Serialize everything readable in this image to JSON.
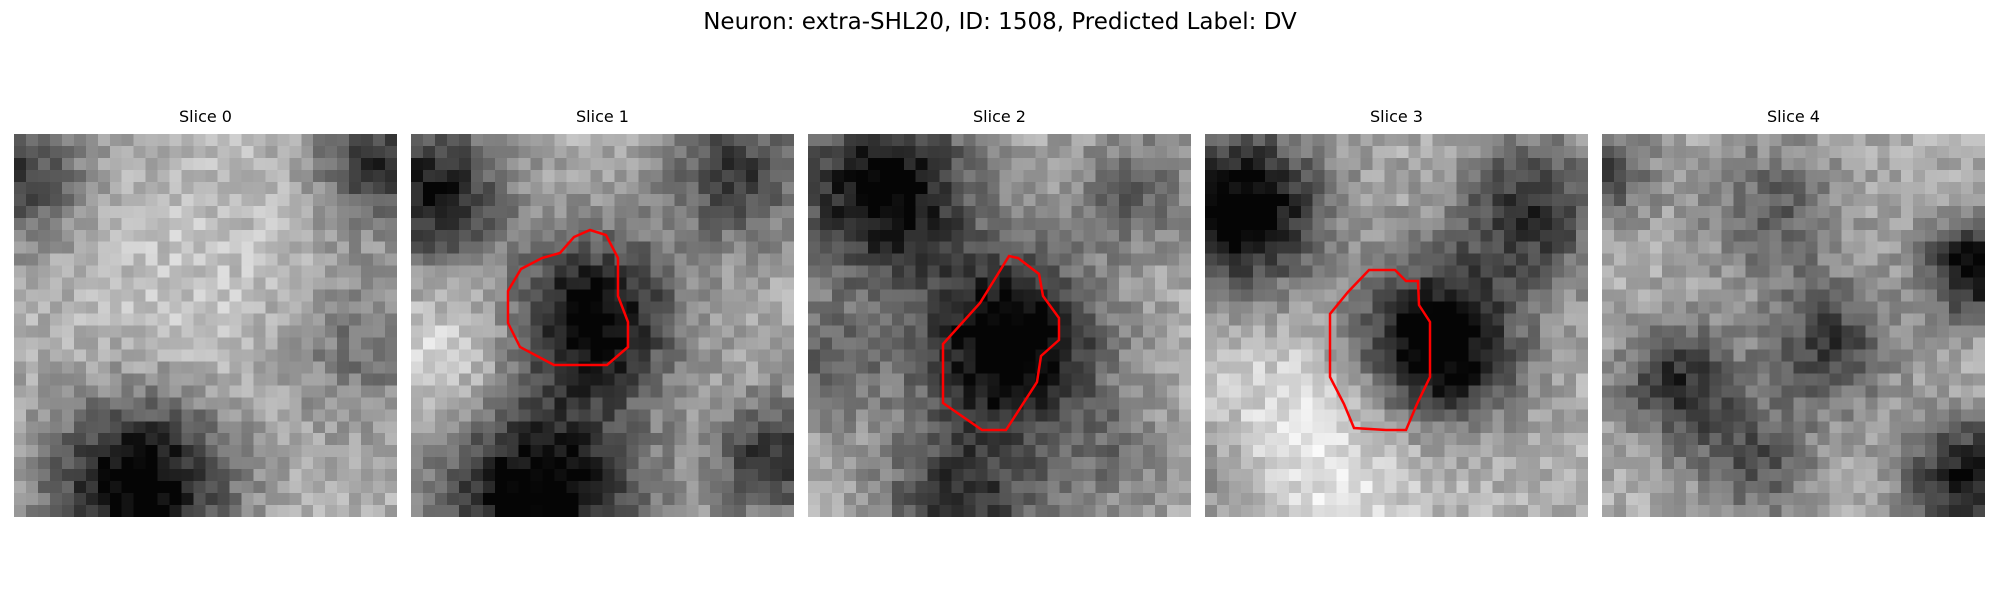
{
  "figure": {
    "title": "Neuron: extra-SHL20, ID: 1508, Predicted Label: DV",
    "contour_color": "#ff0000"
  },
  "panels": [
    {
      "label": "Slice 0",
      "has_contour": false
    },
    {
      "label": "Slice 1",
      "has_contour": true
    },
    {
      "label": "Slice 2",
      "has_contour": true
    },
    {
      "label": "Slice 3",
      "has_contour": true
    },
    {
      "label": "Slice 4",
      "has_contour": false
    }
  ]
}
